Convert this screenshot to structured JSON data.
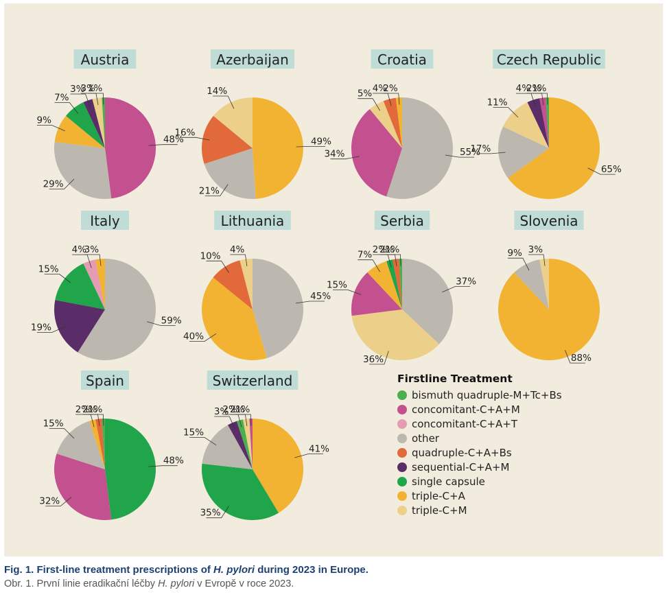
{
  "legend": {
    "title": "Firstline Treatment",
    "items": [
      {
        "label": "bismuth quadruple-M+Tc+Bs",
        "color": "#4caf4f"
      },
      {
        "label": "concomitant-C+A+M",
        "color": "#c3508f"
      },
      {
        "label": "concomitant-C+A+T",
        "color": "#e39cb2"
      },
      {
        "label": "other",
        "color": "#bcb8b0"
      },
      {
        "label": "quadruple-C+A+Bs",
        "color": "#e2693a"
      },
      {
        "label": "sequential-C+A+M",
        "color": "#5a2d69"
      },
      {
        "label": "single capsule",
        "color": "#21a54a"
      },
      {
        "label": "triple-C+A",
        "color": "#f2b333"
      },
      {
        "label": "triple-C+M",
        "color": "#ecd08a"
      }
    ]
  },
  "chart_data": [
    {
      "type": "pie",
      "title": "Austria",
      "slices": [
        {
          "label": "concomitant-C+A+M",
          "value": 48,
          "text": "48%"
        },
        {
          "label": "other",
          "value": 29,
          "text": "29%"
        },
        {
          "label": "triple-C+A",
          "value": 9,
          "text": "9%"
        },
        {
          "label": "single capsule",
          "value": 7,
          "text": "7%"
        },
        {
          "label": "sequential-C+A+M",
          "value": 3,
          "text": "3%"
        },
        {
          "label": "triple-C+M",
          "value": 3,
          "text": "3%"
        },
        {
          "label": "bismuth quadruple-M+Tc+Bs",
          "value": 1,
          "text": "1%"
        }
      ]
    },
    {
      "type": "pie",
      "title": "Azerbaijan",
      "slices": [
        {
          "label": "triple-C+A",
          "value": 49,
          "text": "49%"
        },
        {
          "label": "other",
          "value": 21,
          "text": "21%"
        },
        {
          "label": "quadruple-C+A+Bs",
          "value": 16,
          "text": "16%"
        },
        {
          "label": "triple-C+M",
          "value": 14,
          "text": "14%"
        }
      ]
    },
    {
      "type": "pie",
      "title": "Croatia",
      "slices": [
        {
          "label": "other",
          "value": 55,
          "text": "55%"
        },
        {
          "label": "concomitant-C+A+M",
          "value": 34,
          "text": "34%"
        },
        {
          "label": "triple-C+M",
          "value": 5,
          "text": "5%"
        },
        {
          "label": "quadruple-C+A+Bs",
          "value": 4,
          "text": "4%"
        },
        {
          "label": "triple-C+A",
          "value": 2,
          "text": "2%"
        }
      ]
    },
    {
      "type": "pie",
      "title": "Czech Republic",
      "slices": [
        {
          "label": "triple-C+A",
          "value": 65,
          "text": "65%"
        },
        {
          "label": "other",
          "value": 17,
          "text": "17%"
        },
        {
          "label": "triple-C+M",
          "value": 11,
          "text": "11%"
        },
        {
          "label": "sequential-C+A+M",
          "value": 4,
          "text": "4%"
        },
        {
          "label": "concomitant-C+A+M",
          "value": 2,
          "text": "2%"
        },
        {
          "label": "bismuth quadruple-M+Tc+Bs",
          "value": 1,
          "text": "1%"
        }
      ]
    },
    {
      "type": "pie",
      "title": "Italy",
      "slices": [
        {
          "label": "other",
          "value": 59,
          "text": "59%"
        },
        {
          "label": "sequential-C+A+M",
          "value": 19,
          "text": "19%"
        },
        {
          "label": "single capsule",
          "value": 15,
          "text": "15%"
        },
        {
          "label": "concomitant-C+A+T",
          "value": 4,
          "text": "4%"
        },
        {
          "label": "triple-C+A",
          "value": 3,
          "text": "3%"
        }
      ]
    },
    {
      "type": "pie",
      "title": "Lithuania",
      "slices": [
        {
          "label": "other",
          "value": 45,
          "text": "45%"
        },
        {
          "label": "triple-C+A",
          "value": 40,
          "text": "40%"
        },
        {
          "label": "quadruple-C+A+Bs",
          "value": 10,
          "text": "10%"
        },
        {
          "label": "triple-C+M",
          "value": 4,
          "text": "4%"
        }
      ]
    },
    {
      "type": "pie",
      "title": "Serbia",
      "slices": [
        {
          "label": "other",
          "value": 37,
          "text": "37%"
        },
        {
          "label": "triple-C+M",
          "value": 36,
          "text": "36%"
        },
        {
          "label": "concomitant-C+A+M",
          "value": 15,
          "text": "15%"
        },
        {
          "label": "triple-C+A",
          "value": 7,
          "text": "7%"
        },
        {
          "label": "single capsule",
          "value": 2,
          "text": "2%"
        },
        {
          "label": "quadruple-C+A+Bs",
          "value": 2,
          "text": "2%"
        },
        {
          "label": "bismuth quadruple-M+Tc+Bs",
          "value": 1,
          "text": "1%"
        }
      ]
    },
    {
      "type": "pie",
      "title": "Slovenia",
      "slices": [
        {
          "label": "triple-C+A",
          "value": 88,
          "text": "88%"
        },
        {
          "label": "other",
          "value": 9,
          "text": "9%"
        },
        {
          "label": "triple-C+M",
          "value": 3,
          "text": "3%"
        }
      ]
    },
    {
      "type": "pie",
      "title": "Spain",
      "slices": [
        {
          "label": "single capsule",
          "value": 48,
          "text": "48%"
        },
        {
          "label": "concomitant-C+A+M",
          "value": 32,
          "text": "32%"
        },
        {
          "label": "other",
          "value": 15,
          "text": "15%"
        },
        {
          "label": "triple-C+A",
          "value": 2,
          "text": "2%"
        },
        {
          "label": "quadruple-C+A+Bs",
          "value": 2,
          "text": "2%"
        },
        {
          "label": "bismuth quadruple-M+Tc+Bs",
          "value": 1,
          "text": "1%"
        }
      ]
    },
    {
      "type": "pie",
      "title": "Switzerland",
      "slices": [
        {
          "label": "triple-C+A",
          "value": 41,
          "text": "41%"
        },
        {
          "label": "single capsule",
          "value": 35,
          "text": "35%"
        },
        {
          "label": "other",
          "value": 15,
          "text": "15%"
        },
        {
          "label": "sequential-C+A+M",
          "value": 3,
          "text": "3%"
        },
        {
          "label": "bismuth quadruple-M+Tc+Bs",
          "value": 2,
          "text": "2%"
        },
        {
          "label": "triple-C+M",
          "value": 2,
          "text": "2%"
        },
        {
          "label": "concomitant-C+A+M",
          "value": 1,
          "text": "1%"
        }
      ]
    }
  ],
  "caption": {
    "en_prefix": "Fig. 1. First-line treatment prescriptions of ",
    "en_italic": "H. pylori",
    "en_suffix": " during 2023 in Europe.",
    "cs_prefix": "Obr. 1. První linie eradikační léčby ",
    "cs_italic": "H. pylori",
    "cs_suffix": " v Evropě v roce 2023."
  }
}
